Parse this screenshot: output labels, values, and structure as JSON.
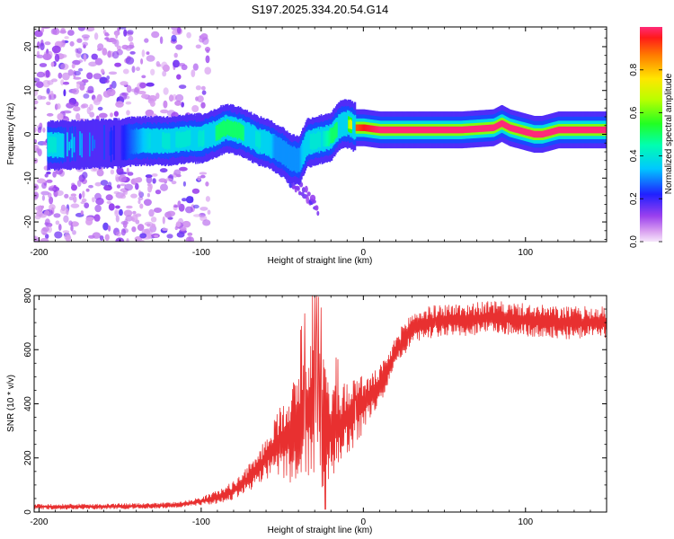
{
  "title": "S197.2025.334.20.54.G14",
  "chart_data": [
    {
      "type": "heatmap",
      "xlabel": "Height of straight line (km)",
      "ylabel": "Frequency (Hz)",
      "xlim": [
        -203,
        150
      ],
      "ylim": [
        -24.5,
        24.5
      ],
      "xticks": [
        -200,
        -100,
        0,
        100
      ],
      "xtick_labels": [
        "-200",
        "-100",
        "0",
        "100"
      ],
      "yticks": [
        20,
        10,
        0,
        -10,
        -20
      ],
      "ytick_labels": [
        "20",
        "10",
        "0",
        "-10",
        "-20"
      ],
      "colorbar": {
        "label": "Normalized spectral amplitude",
        "range": [
          0,
          1
        ],
        "ticks": [
          0.0,
          0.2,
          0.4,
          0.6,
          0.8
        ],
        "tick_labels": [
          "0.0",
          "0.2",
          "0.4",
          "0.6",
          "0.8"
        ]
      },
      "ridge": {
        "x": [
          -190,
          -150,
          -140,
          -130,
          -120,
          -110,
          -100,
          -90,
          -85,
          -80,
          -75,
          -70,
          -65,
          -60,
          -55,
          -50,
          -45,
          -40,
          -35,
          -30,
          -25,
          -20,
          -15,
          -10,
          -5,
          0,
          10,
          20,
          40,
          60,
          80,
          85,
          90,
          95,
          100,
          105,
          110,
          115,
          120,
          130,
          150
        ],
        "y": [
          -2.5,
          -2.0,
          -1.5,
          -1.5,
          -1.5,
          -1.0,
          -1.0,
          0.5,
          1.5,
          1.0,
          0.5,
          -0.5,
          -1.5,
          -2.0,
          -3.0,
          -4.0,
          -5.5,
          -6.0,
          -2.0,
          -1.5,
          -1.0,
          -0.5,
          2.0,
          2.5,
          1.5,
          1.5,
          1.0,
          1.0,
          1.0,
          1.0,
          1.5,
          2.5,
          1.5,
          1.0,
          0.5,
          0.0,
          0.0,
          0.5,
          1.0,
          1.0,
          1.0
        ],
        "amplitude": [
          0.4,
          0.2,
          0.3,
          0.4,
          0.4,
          0.4,
          0.4,
          0.5,
          0.5,
          0.5,
          0.5,
          0.4,
          0.4,
          0.4,
          0.3,
          0.3,
          0.3,
          0.3,
          0.4,
          0.4,
          0.4,
          0.5,
          0.5,
          0.6,
          0.9,
          0.95,
          1.0,
          1.0,
          1.0,
          1.0,
          1.0,
          1.0,
          1.0,
          1.0,
          1.0,
          1.0,
          1.0,
          1.0,
          1.0,
          1.0,
          1.0
        ]
      },
      "descending_branch": {
        "x": [
          -80,
          -70,
          -60,
          -55,
          -50,
          -45,
          -40,
          -35,
          -30,
          -28
        ],
        "y": [
          1.0,
          -1.0,
          -4.0,
          -6.0,
          -8.5,
          -11.0,
          -12.0,
          -13.5,
          -16.0,
          -17.5
        ],
        "amplitude": [
          0.3,
          0.3,
          0.3,
          0.25,
          0.25,
          0.2,
          0.15,
          0.15,
          0.15,
          0.15
        ]
      }
    },
    {
      "type": "line",
      "xlabel": "Height of straight line (km)",
      "ylabel": "SNR (10 * v/v)",
      "xlim": [
        -203,
        150
      ],
      "ylim": [
        0,
        800
      ],
      "xticks": [
        -200,
        -100,
        0,
        100
      ],
      "xtick_labels": [
        "-200",
        "-100",
        "0",
        "100"
      ],
      "yticks": [
        0,
        200,
        400,
        600,
        800
      ],
      "ytick_labels": [
        "0",
        "200",
        "400",
        "600",
        "800"
      ],
      "series": [
        {
          "name": "SNR",
          "color": "#e83030",
          "x": [
            -203,
            -180,
            -160,
            -140,
            -120,
            -110,
            -100,
            -90,
            -85,
            -80,
            -75,
            -70,
            -65,
            -60,
            -55,
            -50,
            -45,
            -40,
            -35,
            -30,
            -25,
            -20,
            -15,
            -10,
            -5,
            0,
            5,
            10,
            15,
            20,
            25,
            30,
            40,
            50,
            60,
            80,
            100,
            120,
            150
          ],
          "mean": [
            20,
            20,
            20,
            22,
            25,
            30,
            40,
            55,
            65,
            80,
            100,
            130,
            160,
            200,
            240,
            270,
            290,
            320,
            360,
            400,
            330,
            300,
            320,
            350,
            380,
            400,
            430,
            470,
            520,
            600,
            640,
            680,
            700,
            710,
            710,
            720,
            710,
            700,
            700
          ],
          "amp": [
            10,
            10,
            10,
            10,
            10,
            12,
            15,
            25,
            30,
            35,
            40,
            50,
            60,
            80,
            100,
            150,
            180,
            200,
            250,
            280,
            250,
            180,
            150,
            140,
            150,
            100,
            80,
            70,
            60,
            50,
            60,
            60,
            60,
            60,
            60,
            60,
            60,
            60,
            60
          ]
        }
      ]
    }
  ]
}
